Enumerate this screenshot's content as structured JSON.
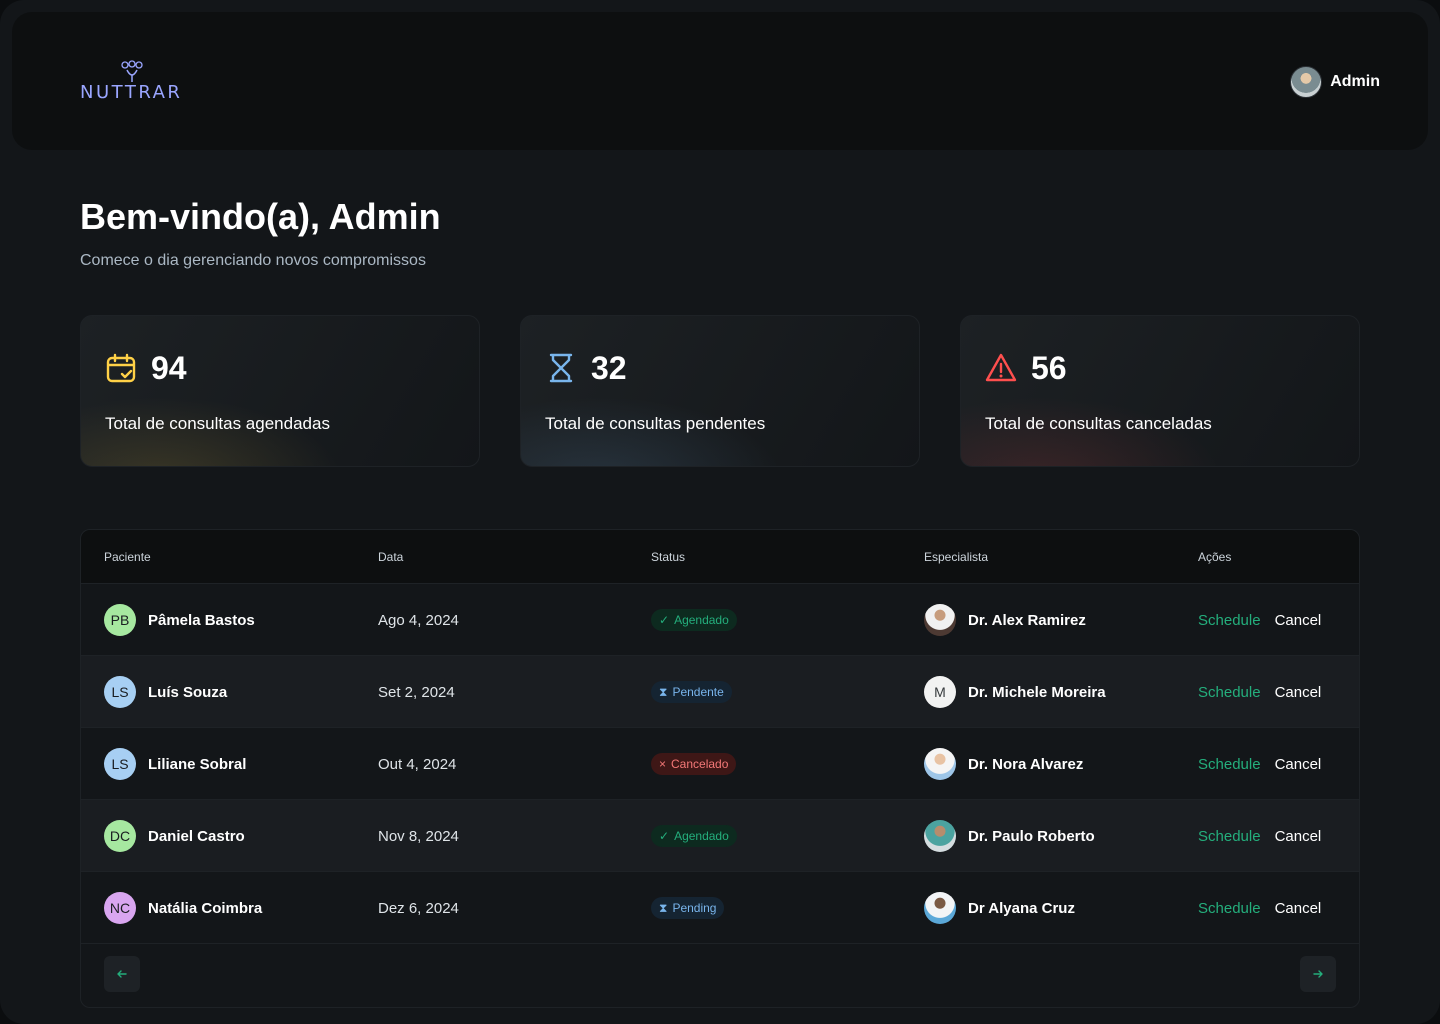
{
  "header": {
    "logo_text": "NUTTRAR",
    "user_name": "Admin"
  },
  "welcome": {
    "title": "Bem-vindo(a), Admin",
    "subtitle": "Comece o dia gerenciando novos compromissos"
  },
  "stats": [
    {
      "value": "94",
      "label": "Total de consultas agendadas",
      "icon": "calendar-check-icon",
      "color": "#FFD147"
    },
    {
      "value": "32",
      "label": "Total de consultas pendentes",
      "icon": "hourglass-icon",
      "color": "#79B5EC"
    },
    {
      "value": "56",
      "label": "Total de consultas canceladas",
      "icon": "warning-triangle-icon",
      "color": "#FF4F4E"
    }
  ],
  "table": {
    "columns": [
      "Paciente",
      "Data",
      "Status",
      "Especialista",
      "Ações"
    ],
    "rows": [
      {
        "initials": "PB",
        "initials_color": "#A6E8A0",
        "patient": "Pâmela Bastos",
        "date": "Ago 4, 2024",
        "status": "Agendado",
        "status_type": "ok",
        "doctor": "Dr. Alex Ramirez",
        "doctor_avatar": "photo",
        "schedule": "Schedule",
        "cancel": "Cancel"
      },
      {
        "initials": "LS",
        "initials_color": "#A7CFF3",
        "patient": "Luís Souza",
        "date": "Set 2, 2024",
        "status": "Pendente",
        "status_type": "pend",
        "doctor": "Dr. Michele Moreira",
        "doctor_avatar": "M",
        "schedule": "Schedule",
        "cancel": "Cancel"
      },
      {
        "initials": "LS",
        "initials_color": "#A7CFF3",
        "patient": "Liliane Sobral",
        "date": "Out 4, 2024",
        "status": "Cancelado",
        "status_type": "cancel",
        "doctor": "Dr. Nora Alvarez",
        "doctor_avatar": "photo",
        "schedule": "Schedule",
        "cancel": "Cancel"
      },
      {
        "initials": "DC",
        "initials_color": "#A6E8A0",
        "patient": "Daniel Castro",
        "date": "Nov 8, 2024",
        "status": "Agendado",
        "status_type": "ok",
        "doctor": "Dr. Paulo Roberto",
        "doctor_avatar": "photo",
        "schedule": "Schedule",
        "cancel": "Cancel"
      },
      {
        "initials": "NC",
        "initials_color": "#D9A6F0",
        "patient": "Natália Coimbra",
        "date": "Dez 6, 2024",
        "status": "Pending",
        "status_type": "pend",
        "doctor": "Dr Alyana Cruz",
        "doctor_avatar": "photo",
        "schedule": "Schedule",
        "cancel": "Cancel"
      }
    ]
  },
  "pagination": {
    "prev_icon": "arrow-left-icon",
    "next_icon": "arrow-right-icon"
  }
}
